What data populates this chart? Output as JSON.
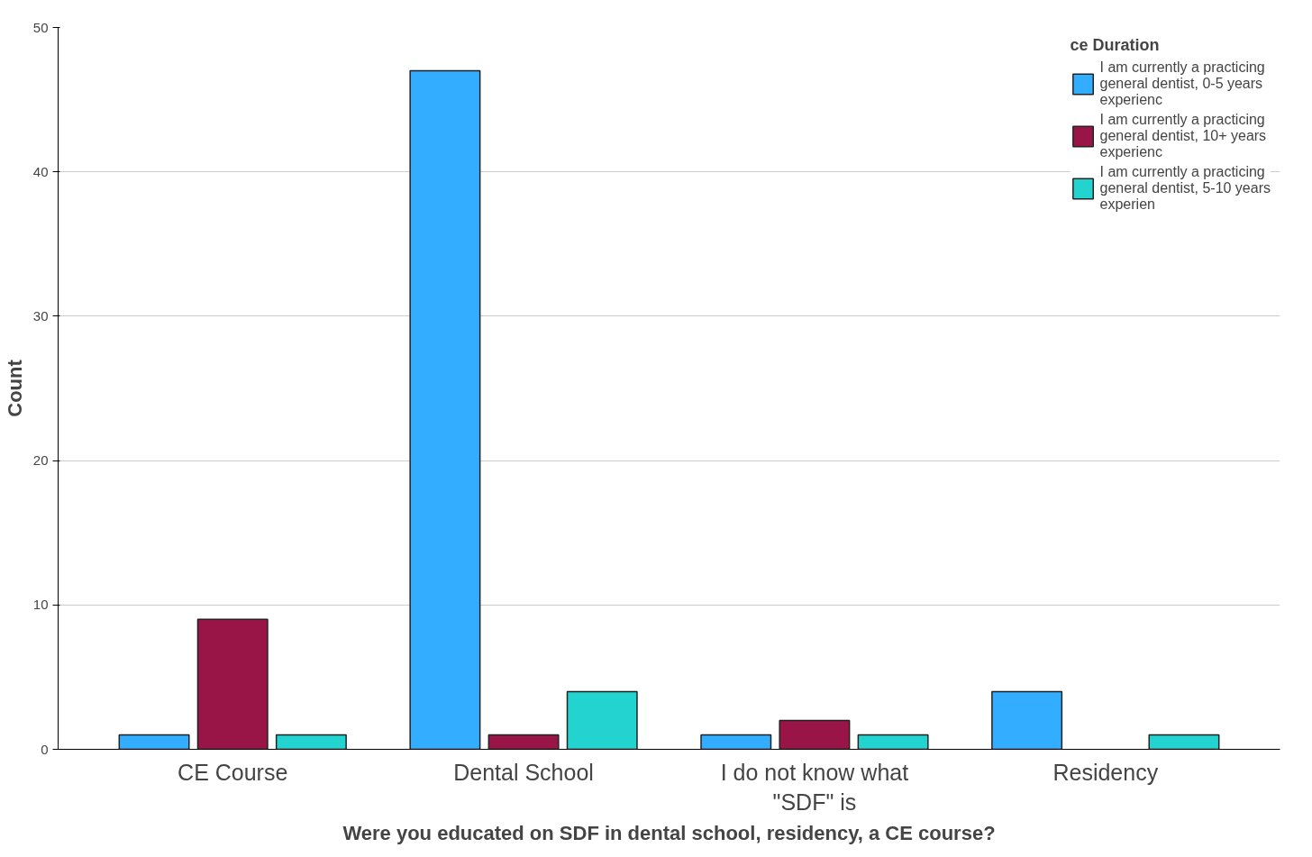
{
  "chart_data": {
    "type": "bar",
    "xlabel": "Were you educated on SDF in dental school, residency, a CE course?",
    "ylabel": "Count",
    "legend_title": "ce Duration",
    "categories": [
      "CE Course",
      "Dental School",
      "I do not know what\n\"SDF\" is",
      "Residency"
    ],
    "series": [
      {
        "name": "I am currently a practicing general dentist, 0-5 years experienc",
        "color": "#33adff",
        "values": [
          1,
          47,
          1,
          4
        ]
      },
      {
        "name": "I am currently a practicing general dentist, 10+ years experienc",
        "color": "#991547",
        "values": [
          9,
          1,
          2,
          null
        ]
      },
      {
        "name": "I am currently a practicing general dentist, 5-10 years experien",
        "color": "#22d3d0",
        "values": [
          1,
          4,
          1,
          1
        ]
      }
    ],
    "ylim": [
      0,
      50
    ],
    "yticks": [
      0,
      10,
      20,
      30,
      40,
      50
    ],
    "grid": "y",
    "legend": "top right"
  }
}
